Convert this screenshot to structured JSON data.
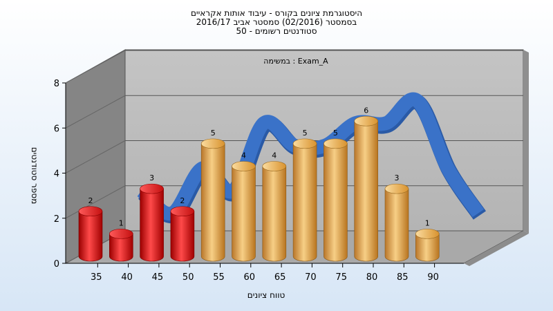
{
  "chart_data": {
    "type": "bar",
    "title_lines": [
      "היסטוגרמת ציונים בקורס - עיבוד אותות אקראיים",
      "בסמסטר  (02/2016)  סמסטר אביב 2016/17",
      "סטודנטים רשומים - 50"
    ],
    "annotation": "במשימה : Exam_A",
    "categories": [
      "35",
      "40",
      "45",
      "50",
      "55",
      "60",
      "65",
      "70",
      "75",
      "80",
      "85",
      "90"
    ],
    "values": [
      2,
      1,
      3,
      2,
      5,
      4,
      4,
      5,
      5,
      6,
      3,
      1
    ],
    "bar_colors": [
      "#e01818",
      "#e01818",
      "#e01818",
      "#e01818",
      "#e8a443",
      "#e8a443",
      "#e8a443",
      "#e8a443",
      "#e8a443",
      "#e8a443",
      "#e8a443",
      "#e8a443"
    ],
    "y_ticks": [
      "0",
      "2",
      "4",
      "6",
      "8"
    ],
    "ylim": [
      0,
      8
    ],
    "xlabel": "טווח ציונים",
    "ylabel": "מספר סטודנטים",
    "trend_line_color": "#3a72c8",
    "grid": true
  }
}
